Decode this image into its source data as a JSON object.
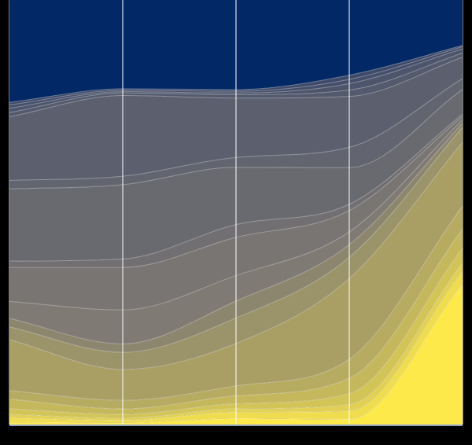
{
  "chart_data": {
    "type": "area",
    "title": "",
    "xlabel": "",
    "ylabel": "",
    "x_ticks": [
      "",
      "",
      "",
      "",
      ""
    ],
    "ylim": [
      0,
      100
    ],
    "grid": true,
    "legend": "none",
    "colors": {
      "background": "#000000",
      "top_band": "#022865",
      "plot_border": "#777777",
      "gridline": "#ffffff",
      "baseline": "#8fa0c8",
      "boundary_line": "#ffffff",
      "ramp_low": "#fde94a",
      "ramp_mid": "#7f7a73",
      "ramp_high": "#3e4a6a"
    },
    "series": [
      {
        "values": [
          0.5,
          0.4,
          1.4,
          1.2,
          33.0
        ]
      },
      {
        "values": [
          1.1,
          0.6,
          1.5,
          2.0,
          3.0
        ]
      },
      {
        "values": [
          0.8,
          0.5,
          0.8,
          1.5,
          2.0
        ]
      },
      {
        "values": [
          1.3,
          0.9,
          1.2,
          2.6,
          3.5
        ]
      },
      {
        "values": [
          2.3,
          1.3,
          1.9,
          3.6,
          4.5
        ]
      },
      {
        "values": [
          2.0,
          2.0,
          2.3,
          4.5,
          5.5
        ]
      },
      {
        "values": [
          12.0,
          7.3,
          10.0,
          19.0,
          15.0
        ]
      },
      {
        "values": [
          3.0,
          4.0,
          6.0,
          5.0,
          3.5
        ]
      },
      {
        "values": [
          2.0,
          2.0,
          4.0,
          3.0,
          1.0
        ]
      },
      {
        "values": [
          4.0,
          8.0,
          6.0,
          3.0,
          0.8
        ]
      },
      {
        "values": [
          8.0,
          10.0,
          9.0,
          5.0,
          0.8
        ]
      },
      {
        "values": [
          1.5,
          2.0,
          3.0,
          1.5,
          0.5
        ]
      },
      {
        "values": [
          17.0,
          17.5,
          13.5,
          8.6,
          5.8
        ]
      },
      {
        "values": [
          2.0,
          2.0,
          2.3,
          4.8,
          2.6
        ]
      },
      {
        "values": [
          15.0,
          19.0,
          14.0,
          12.0,
          5.0
        ]
      },
      {
        "values": [
          1.0,
          0.6,
          0.8,
          1.5,
          1.0
        ]
      },
      {
        "values": [
          1.0,
          0.3,
          0.4,
          1.5,
          1.0
        ]
      },
      {
        "values": [
          0.8,
          0.3,
          0.4,
          1.0,
          0.5
        ]
      },
      {
        "values": [
          0.6,
          0.4,
          0.4,
          1.0,
          0.3
        ]
      },
      {
        "values": [
          23.9,
          48.6,
          45.2,
          28.0,
          36.2
        ]
      }
    ]
  }
}
